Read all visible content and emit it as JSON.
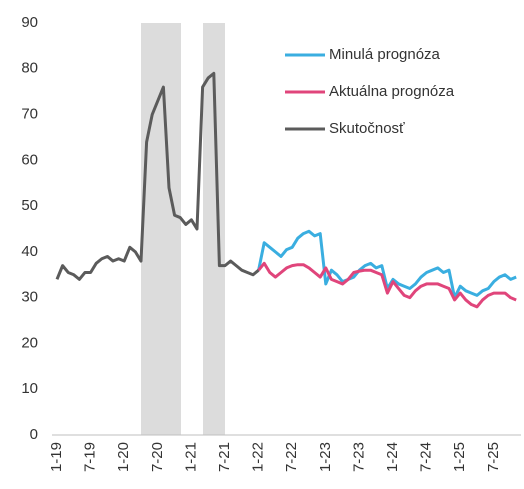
{
  "chart_data": {
    "type": "line",
    "categories": [
      "1-19",
      null,
      null,
      null,
      null,
      null,
      "7-19",
      null,
      null,
      null,
      null,
      null,
      "1-20",
      null,
      null,
      null,
      null,
      null,
      "7-20",
      null,
      null,
      null,
      null,
      null,
      "1-21",
      null,
      null,
      null,
      null,
      null,
      "7-21",
      null,
      null,
      null,
      null,
      null,
      "1-22",
      null,
      null,
      null,
      null,
      null,
      "7-22",
      null,
      null,
      null,
      null,
      null,
      "1-23",
      null,
      null,
      null,
      null,
      null,
      "7-23",
      null,
      null,
      null,
      null,
      null,
      "1-24",
      null,
      null,
      null,
      null,
      null,
      "7-24",
      null,
      null,
      null,
      null,
      null,
      "1-25",
      null,
      null,
      null,
      null,
      null,
      "7-25",
      null,
      null,
      null,
      null
    ],
    "series": [
      {
        "name": "Minulá prognóza",
        "color": "#3aaee0",
        "values": [
          null,
          null,
          null,
          null,
          null,
          null,
          null,
          null,
          null,
          null,
          null,
          null,
          null,
          null,
          null,
          null,
          null,
          null,
          null,
          null,
          null,
          null,
          null,
          null,
          null,
          null,
          null,
          null,
          null,
          null,
          null,
          null,
          null,
          null,
          null,
          null,
          36,
          42,
          41,
          40,
          39,
          40.5,
          41,
          43,
          44,
          44.5,
          43.5,
          44,
          33,
          36,
          35,
          33.5,
          34,
          34.5,
          36,
          37,
          37.5,
          36.5,
          37,
          32,
          34,
          33,
          32.5,
          32,
          33,
          34.5,
          35.5,
          36,
          36.5,
          35.5,
          36,
          30,
          32.5,
          31.5,
          31,
          30.5,
          31.5,
          32,
          33.5,
          34.5,
          35,
          34,
          34.5
        ]
      },
      {
        "name": "Aktuálna prognóza",
        "color": "#e0457b",
        "values": [
          null,
          null,
          null,
          null,
          null,
          null,
          null,
          null,
          null,
          null,
          null,
          null,
          null,
          null,
          null,
          null,
          null,
          null,
          null,
          null,
          null,
          null,
          null,
          null,
          null,
          null,
          null,
          null,
          null,
          null,
          null,
          null,
          null,
          null,
          null,
          null,
          36,
          37.5,
          35.5,
          34.5,
          35.5,
          36.5,
          37,
          37.2,
          37.2,
          36.5,
          35.5,
          34.5,
          36.5,
          34,
          33.5,
          33,
          34,
          35.5,
          35.8,
          36,
          36,
          35.5,
          35,
          31,
          33.5,
          32,
          30.5,
          30,
          31.5,
          32.5,
          33,
          33,
          33,
          32.5,
          32,
          29.5,
          31,
          29.5,
          28.5,
          28,
          29.5,
          30.5,
          31,
          31,
          31,
          30,
          29.5
        ]
      },
      {
        "name": "Skutočnosť",
        "color": "#5b5b5b",
        "values": [
          34,
          37,
          35.5,
          35,
          34,
          35.5,
          35.5,
          37.5,
          38.5,
          39,
          38,
          38.5,
          38,
          41,
          40,
          38,
          64,
          70,
          73,
          76,
          54,
          48,
          47.5,
          46,
          47,
          45,
          76,
          78,
          79,
          37,
          37,
          38,
          37,
          36,
          35.5,
          35,
          36,
          null,
          null,
          null,
          null,
          null,
          null,
          null,
          null,
          null,
          null,
          null,
          null,
          null,
          null,
          null,
          null,
          null,
          null,
          null,
          null,
          null,
          null,
          null,
          null,
          null,
          null,
          null,
          null,
          null,
          null,
          null,
          null,
          null,
          null,
          null,
          null,
          null,
          null,
          null,
          null,
          null,
          null,
          null,
          null,
          null,
          null
        ]
      }
    ],
    "ylim": [
      0,
      90
    ],
    "yticks": [
      0,
      10,
      20,
      30,
      40,
      50,
      60,
      70,
      80,
      90
    ],
    "grid": false
  }
}
